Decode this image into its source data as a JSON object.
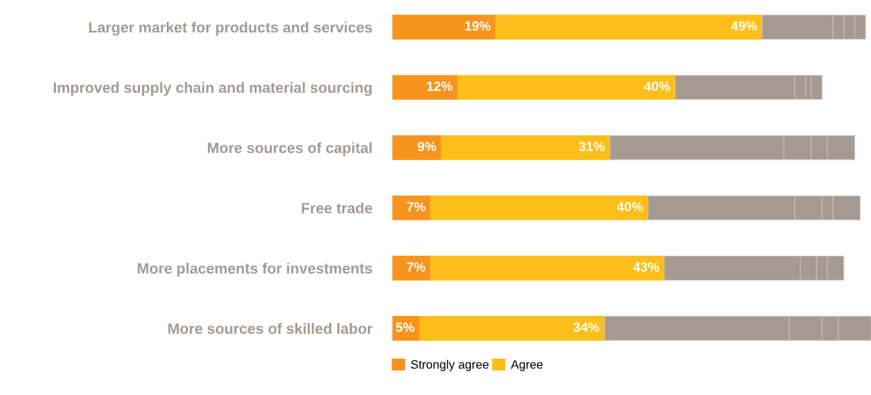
{
  "chart_data": {
    "type": "bar",
    "orientation": "horizontal",
    "stacked": true,
    "legend": "bottom",
    "grid": false,
    "tick_labels": "y",
    "categories": [
      "Larger market for products and services",
      "Improved supply chain and material sourcing",
      "More sources of capital",
      "Free trade",
      "More placements for investments",
      "More sources of skilled labor"
    ],
    "series": [
      {
        "name": "Strongly agree",
        "color": "#f7941d",
        "values": [
          19,
          12,
          9,
          7,
          7,
          5
        ],
        "value_labels": [
          "19%",
          "12%",
          "9%",
          "7%",
          "7%",
          "5%"
        ]
      },
      {
        "name": "Agree",
        "color": "#fdbe19",
        "values": [
          49,
          40,
          31,
          40,
          43,
          34
        ],
        "value_labels": [
          "49%",
          "40%",
          "31%",
          "40%",
          "43%",
          "34%"
        ]
      },
      {
        "color": "#a69990",
        "values": [
          13,
          22,
          32,
          27,
          25,
          34
        ]
      },
      {
        "color": "#a69990",
        "values": [
          2,
          2,
          5,
          5,
          3,
          6
        ]
      },
      {
        "color": "#a69990",
        "values": [
          2,
          1,
          3,
          2,
          2,
          3
        ]
      },
      {
        "color": "#a69990",
        "values": [
          2,
          2,
          5,
          5,
          3,
          6
        ]
      }
    ]
  }
}
